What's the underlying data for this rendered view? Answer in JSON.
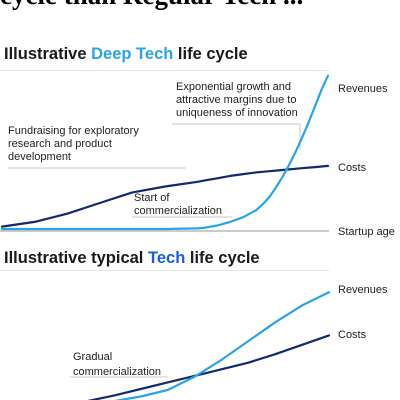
{
  "headline": "cycle than Regular Tech ...",
  "sections": [
    {
      "title_pre": "Illustrative ",
      "title_accent": "Deep Tech",
      "title_post": " life cycle"
    },
    {
      "title_pre": "Illustrative typical ",
      "title_accent": "Tech",
      "title_post": " life cycle"
    }
  ],
  "colors": {
    "revenues": "#2aa4e8",
    "costs": "#142a6e",
    "deep_accent": "#2aa4e8",
    "tech_accent": "#1a5fd6",
    "rule": "#c8c8c8"
  },
  "chart_data": [
    {
      "type": "line",
      "xlabel": "Startup age",
      "x": [
        0,
        10,
        20,
        30,
        40,
        50,
        60,
        62,
        66,
        70,
        74,
        78,
        80,
        82,
        84,
        86,
        88,
        90,
        92,
        94,
        96,
        98,
        100
      ],
      "series": [
        {
          "name": "Revenues",
          "values": [
            0,
            0,
            0,
            0,
            0,
            0,
            0.5,
            1,
            3,
            6,
            10,
            16,
            21,
            27,
            35,
            44,
            54,
            65,
            77,
            90,
            104,
            118,
            130
          ]
        },
        {
          "name": "Costs",
          "values": [
            2,
            6,
            13,
            22,
            31,
            36,
            40,
            41,
            43,
            45,
            46.5,
            48,
            48.5,
            49,
            49.5,
            50,
            50.5,
            51,
            51.5,
            52,
            52.5,
            53,
            53.5
          ]
        }
      ],
      "annotations": [
        {
          "text": [
            "Fundraising for exploratory",
            "research and product",
            "development"
          ]
        },
        {
          "text": [
            "Start of",
            "commercialization"
          ]
        },
        {
          "text": [
            "Exponential growth and",
            "attractive margins due to",
            "uniqueness of innovation"
          ]
        }
      ]
    },
    {
      "type": "line",
      "x": [
        0,
        10,
        20,
        30,
        40,
        50,
        60,
        70,
        80,
        90,
        100
      ],
      "series": [
        {
          "name": "Revenues",
          "values": [
            0,
            1,
            4,
            9,
            16,
            30,
            48,
            68,
            88,
            106,
            120
          ]
        },
        {
          "name": "Costs",
          "values": [
            0,
            4,
            10,
            17,
            24,
            31,
            38,
            45,
            54,
            64,
            74
          ]
        }
      ],
      "annotations": [
        {
          "text": [
            "Gradual",
            "commercialization"
          ]
        }
      ]
    }
  ]
}
